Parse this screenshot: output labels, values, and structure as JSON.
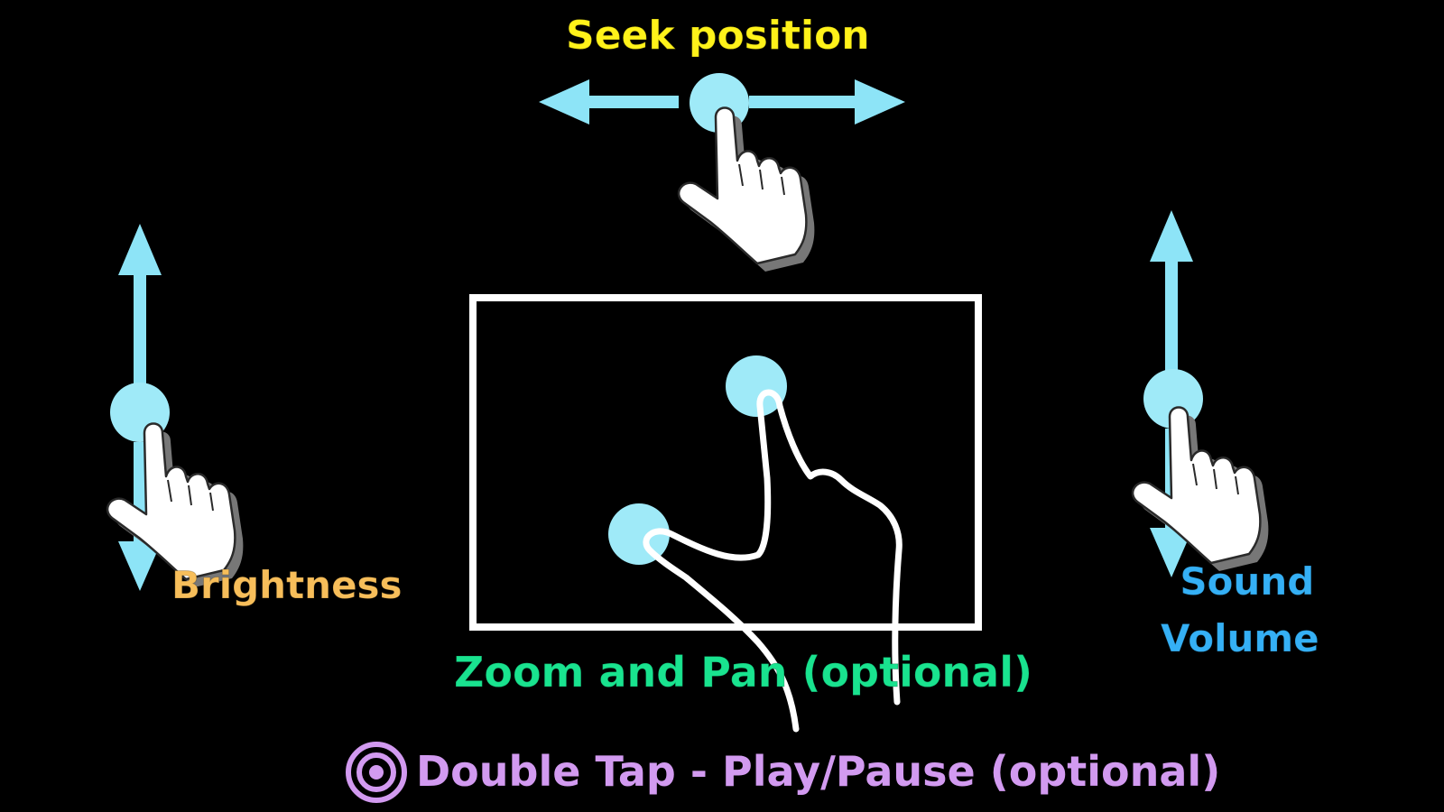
{
  "labels": {
    "seek": "Seek position",
    "brightness": "Brightness",
    "sound_line1": "Sound",
    "sound_line2": "Volume",
    "zoom": "Zoom and Pan (optional)",
    "double_tap": "Double Tap - Play/Pause (optional)"
  },
  "colors": {
    "background": "#000000",
    "arrow": "#8de4f7",
    "touch_dot": "#9feaf8",
    "seek": "#fff21a",
    "brightness": "#f7be5a",
    "sound": "#35b0f5",
    "zoom": "#19e38f",
    "double_tap": "#d29af0",
    "frame": "#ffffff"
  },
  "icons": [
    "pointing-hand-icon",
    "pinch-hand-icon",
    "double-tap-icon",
    "arrow-icon"
  ]
}
